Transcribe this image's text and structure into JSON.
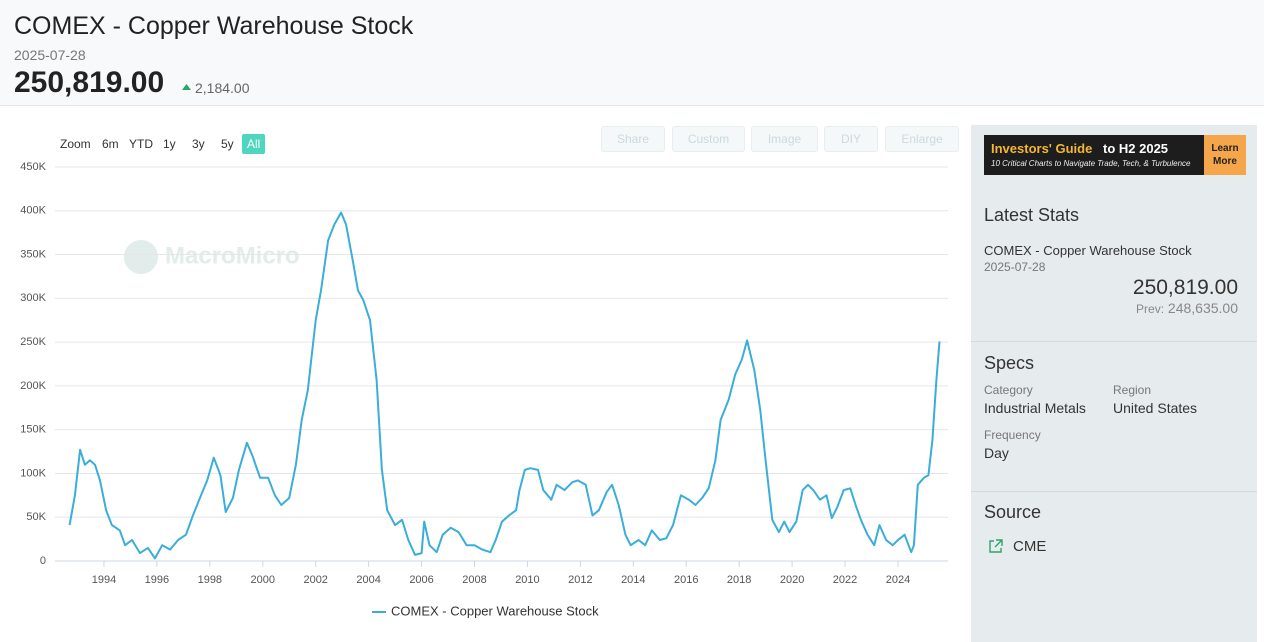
{
  "header": {
    "title": "COMEX - Copper Warehouse Stock",
    "date": "2025-07-28",
    "value": "250,819.00",
    "change": "2,184.00"
  },
  "range_selector": {
    "label": "Zoom",
    "buttons": [
      "6m",
      "YTD",
      "1y",
      "3y",
      "5y",
      "All"
    ],
    "active": 5
  },
  "toolbar": [
    "Share",
    "Custom",
    "Image",
    "DIY",
    "Enlarge"
  ],
  "watermark": "MacroMicro",
  "chart_data": {
    "type": "line",
    "x": [
      1992.7,
      1992.9,
      1993.1,
      1993.28,
      1993.47,
      1993.66,
      1993.85,
      1994.08,
      1994.3,
      1994.6,
      1994.8,
      1995.06,
      1995.36,
      1995.66,
      1995.93,
      1996.2,
      1996.5,
      1996.8,
      1997.1,
      1997.36,
      1997.6,
      1997.9,
      1998.15,
      1998.4,
      1998.6,
      1998.87,
      1999.1,
      1999.4,
      1999.6,
      1999.9,
      2000.2,
      2000.46,
      2000.7,
      2001.0,
      2001.25,
      2001.47,
      2001.7,
      2002.0,
      2002.2,
      2002.47,
      2002.7,
      2002.96,
      2003.15,
      2003.4,
      2003.6,
      2003.8,
      2004.05,
      2004.3,
      2004.5,
      2004.7,
      2005.0,
      2005.26,
      2005.5,
      2005.75,
      2006.0,
      2006.1,
      2006.3,
      2006.57,
      2006.8,
      2007.1,
      2007.4,
      2007.7,
      2008.0,
      2008.3,
      2008.6,
      2008.8,
      2009.04,
      2009.3,
      2009.57,
      2009.7,
      2009.9,
      2010.1,
      2010.4,
      2010.6,
      2010.9,
      2011.1,
      2011.4,
      2011.7,
      2011.9,
      2012.2,
      2012.46,
      2012.7,
      2013.0,
      2013.2,
      2013.45,
      2013.7,
      2013.9,
      2014.2,
      2014.45,
      2014.7,
      2015.0,
      2015.25,
      2015.5,
      2015.8,
      2016.1,
      2016.35,
      2016.6,
      2016.85,
      2017.1,
      2017.3,
      2017.6,
      2017.85,
      2018.1,
      2018.3,
      2018.57,
      2018.8,
      2019.0,
      2019.25,
      2019.5,
      2019.7,
      2019.9,
      2020.16,
      2020.4,
      2020.6,
      2020.8,
      2021.05,
      2021.3,
      2021.5,
      2021.7,
      2021.95,
      2022.2,
      2022.4,
      2022.6,
      2022.85,
      2023.1,
      2023.3,
      2023.55,
      2023.8,
      2024.0,
      2024.25,
      2024.5,
      2024.6,
      2024.75,
      2024.98,
      2025.15,
      2025.3,
      2025.45,
      2025.57
    ],
    "series": [
      {
        "name": "COMEX - Copper Warehouse Stock",
        "color": "#3aaed8",
        "values": [
          41000,
          75000,
          127000,
          110000,
          115000,
          110000,
          92000,
          58000,
          41000,
          35000,
          18000,
          24000,
          9000,
          15000,
          3000,
          18000,
          13000,
          24000,
          30000,
          52000,
          70000,
          92000,
          118000,
          98000,
          56000,
          72000,
          104000,
          135000,
          121000,
          95000,
          95000,
          75000,
          64000,
          72000,
          110000,
          161000,
          195000,
          275000,
          309000,
          366000,
          384000,
          398000,
          384000,
          343000,
          309000,
          298000,
          275000,
          207000,
          104000,
          58000,
          41000,
          47000,
          24000,
          7000,
          9000,
          45000,
          18000,
          10000,
          30000,
          38000,
          33000,
          18000,
          18000,
          13000,
          10000,
          24000,
          45000,
          52000,
          58000,
          81000,
          104000,
          106000,
          104000,
          81000,
          70000,
          87000,
          81000,
          90000,
          92000,
          87000,
          52000,
          58000,
          79000,
          87000,
          64000,
          30000,
          18000,
          24000,
          18000,
          35000,
          24000,
          26000,
          41000,
          75000,
          70000,
          64000,
          72000,
          83000,
          115000,
          161000,
          184000,
          213000,
          230000,
          252000,
          218000,
          172000,
          115000,
          47000,
          33000,
          45000,
          33000,
          45000,
          81000,
          87000,
          81000,
          70000,
          75000,
          49000,
          61000,
          81000,
          83000,
          64000,
          47000,
          30000,
          18000,
          41000,
          24000,
          18000,
          24000,
          30000,
          10000,
          18000,
          87000,
          95000,
          98000,
          138000,
          207000,
          250819
        ]
      }
    ],
    "xlim": [
      1992.15,
      2025.89
    ],
    "xticks": [
      1994,
      1996,
      1998,
      2000,
      2002,
      2004,
      2006,
      2008,
      2010,
      2012,
      2014,
      2016,
      2018,
      2020,
      2022,
      2024
    ],
    "ylim": [
      0,
      450000
    ],
    "yticks": [
      0,
      {
        "value": 50000,
        "label": "50K"
      },
      {
        "value": 100000,
        "label": "100K"
      },
      {
        "value": 150000,
        "label": "150K"
      },
      {
        "value": 200000,
        "label": "200K"
      },
      {
        "value": 250000,
        "label": "250K"
      },
      {
        "value": 300000,
        "label": "300K"
      },
      {
        "value": 350000,
        "label": "350K"
      },
      {
        "value": 400000,
        "label": "400K"
      },
      {
        "value": 450000,
        "label": "450K"
      }
    ],
    "grid": true
  },
  "sidebar": {
    "ad": {
      "title": [
        "Investors' Guide",
        "to H2 2025"
      ],
      "subtitle": "10 Critical Charts to Navigate Trade, Tech, & Turbulence",
      "button": "Learn More"
    },
    "latest_stats": {
      "heading": "Latest Stats",
      "name": "COMEX - Copper Warehouse Stock",
      "date": "2025-07-28",
      "value": "250,819.00",
      "prev_label": "Prev:",
      "prev": "248,635.00"
    },
    "specs": {
      "heading": "Specs",
      "items": [
        {
          "label": "Category",
          "value": "Industrial Metals"
        },
        {
          "label": "Region",
          "value": "United States"
        },
        {
          "label": "Frequency",
          "value": "Day"
        }
      ]
    },
    "source": {
      "heading": "Source",
      "items": [
        "CME"
      ]
    }
  }
}
